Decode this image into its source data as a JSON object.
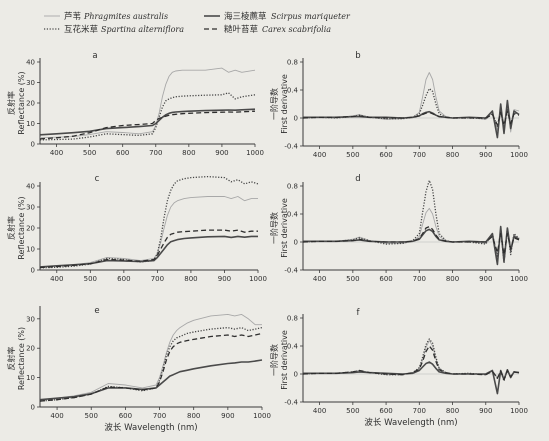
{
  "colors": {
    "background": "#ecebe6",
    "axis": "#3a3a3a",
    "text": "#2f2f2f"
  },
  "legend": {
    "items": [
      {
        "cn": "芦苇",
        "latin": "Phragmites australis",
        "style": "light-solid"
      },
      {
        "cn": "互花米草",
        "latin": "Spartina alterniflora",
        "style": "dotted"
      },
      {
        "cn": "海三棱藨草",
        "latin": "Scirpus mariqueter",
        "style": "thick-solid"
      },
      {
        "cn": "糙叶苔草",
        "latin": "Carex scabrifolia",
        "style": "dashed"
      }
    ]
  },
  "series_styles": {
    "light-solid": {
      "color": "#a8a8a8",
      "width": 0.9,
      "dash": ""
    },
    "dotted": {
      "color": "#444444",
      "width": 1.3,
      "dash": "1.2 1.6"
    },
    "thick-solid": {
      "color": "#4a4a4a",
      "width": 1.6,
      "dash": ""
    },
    "dashed": {
      "color": "#2e2e2e",
      "width": 1.3,
      "dash": "5 3"
    }
  },
  "chart_data": [
    {
      "panel": "a",
      "type": "line",
      "ylabel_cn": "反射率",
      "ylabel_en": "Reflectance (%)",
      "xlabel": "",
      "xlim": [
        350,
        1000
      ],
      "ylim": [
        0,
        40
      ],
      "xticks": [
        400,
        500,
        600,
        700,
        800,
        900,
        1000
      ],
      "yticks": [
        0,
        10,
        20,
        30,
        40
      ],
      "x": [
        350,
        400,
        450,
        500,
        550,
        600,
        650,
        690,
        700,
        710,
        720,
        730,
        740,
        750,
        760,
        780,
        800,
        850,
        900,
        920,
        940,
        960,
        1000
      ],
      "series": [
        {
          "style": "light-solid",
          "values": [
            3,
            3.3,
            3.6,
            4.6,
            6,
            5.6,
            5,
            6,
            9,
            15,
            23,
            29,
            33,
            35,
            35.6,
            36,
            36,
            36,
            37,
            35,
            36,
            35,
            36
          ]
        },
        {
          "style": "dotted",
          "values": [
            2,
            2.2,
            2.4,
            3.4,
            5,
            4.6,
            4.2,
            5,
            8,
            13,
            18,
            21,
            22,
            22.6,
            23,
            23.3,
            23.5,
            23.8,
            24,
            25,
            22,
            23,
            24
          ]
        },
        {
          "style": "thick-solid",
          "values": [
            4.5,
            5,
            5.5,
            6.2,
            7.5,
            8,
            8.5,
            9,
            10,
            11.5,
            13,
            14.2,
            15,
            15.4,
            15.6,
            15.8,
            16,
            16.3,
            16.5,
            16.6,
            16.5,
            16.7,
            17
          ]
        },
        {
          "style": "dashed",
          "values": [
            2.5,
            3,
            3.8,
            5.5,
            8,
            9,
            9.5,
            10,
            11.5,
            12.5,
            13,
            13.5,
            14,
            14.3,
            14.5,
            14.8,
            15,
            15.3,
            15.5,
            15.6,
            15.5,
            15.7,
            16
          ]
        }
      ]
    },
    {
      "panel": "b",
      "type": "line",
      "ylabel_cn": "一阶导数",
      "ylabel_en": "First derivative",
      "xlabel": "",
      "xlim": [
        350,
        1000
      ],
      "ylim": [
        -0.4,
        0.8
      ],
      "xticks": [
        400,
        500,
        600,
        700,
        800,
        900,
        1000
      ],
      "yticks": [
        -0.4,
        0.0,
        0.4,
        0.8
      ],
      "x": [
        350,
        400,
        450,
        500,
        520,
        550,
        600,
        650,
        680,
        700,
        710,
        720,
        730,
        740,
        750,
        760,
        780,
        800,
        850,
        900,
        920,
        935,
        945,
        955,
        965,
        975,
        985,
        1000
      ],
      "series": [
        {
          "style": "light-solid",
          "values": [
            0,
            0.01,
            0,
            0.03,
            0.05,
            0.01,
            -0.02,
            -0.01,
            0.01,
            0.08,
            0.3,
            0.55,
            0.65,
            0.55,
            0.3,
            0.1,
            0.02,
            0,
            0.01,
            -0.02,
            0.08,
            -0.18,
            0.15,
            -0.22,
            0.2,
            -0.2,
            0.12,
            0.1
          ]
        },
        {
          "style": "dotted",
          "values": [
            0,
            0.01,
            0,
            0.02,
            0.04,
            0.01,
            -0.01,
            -0.01,
            0.01,
            0.06,
            0.18,
            0.32,
            0.42,
            0.38,
            0.2,
            0.06,
            0.01,
            0,
            0,
            -0.01,
            0.06,
            -0.12,
            0.1,
            -0.15,
            0.12,
            -0.12,
            0.08,
            0.05
          ]
        },
        {
          "style": "thick-solid",
          "values": [
            0.01,
            0.01,
            0.01,
            0.02,
            0.02,
            0.01,
            0.01,
            0,
            0.01,
            0.03,
            0.06,
            0.08,
            0.09,
            0.07,
            0.04,
            0.02,
            0.01,
            0,
            0.01,
            0,
            0.1,
            -0.28,
            0.2,
            -0.22,
            0.25,
            -0.15,
            0.1,
            0.05
          ]
        },
        {
          "style": "dashed",
          "values": [
            0,
            0.01,
            0.01,
            0.02,
            0.03,
            0.01,
            0,
            0,
            0.01,
            0.03,
            0.05,
            0.07,
            0.08,
            0.06,
            0.04,
            0.02,
            0.01,
            0,
            0,
            0,
            0.05,
            -0.1,
            0.08,
            -0.1,
            0.1,
            -0.08,
            0.06,
            0.04
          ]
        }
      ]
    },
    {
      "panel": "c",
      "type": "line",
      "ylabel_cn": "反射率",
      "ylabel_en": "Reflectance (%)",
      "xlabel": "",
      "xlim": [
        350,
        1000
      ],
      "ylim": [
        0,
        40
      ],
      "xticks": [
        400,
        500,
        600,
        700,
        800,
        900,
        1000
      ],
      "yticks": [
        0,
        10,
        20,
        30,
        40
      ],
      "x": [
        350,
        400,
        450,
        500,
        550,
        600,
        650,
        690,
        700,
        710,
        720,
        730,
        740,
        750,
        760,
        780,
        800,
        850,
        900,
        920,
        940,
        960,
        980,
        1000
      ],
      "series": [
        {
          "style": "light-solid",
          "values": [
            1.5,
            2,
            2.5,
            3.5,
            6,
            5.5,
            4.5,
            5.5,
            8,
            13,
            20,
            26,
            30,
            32,
            33,
            34,
            34.5,
            35,
            35,
            34,
            35,
            33,
            34,
            34
          ]
        },
        {
          "style": "dotted",
          "values": [
            1,
            1.3,
            1.8,
            2.8,
            5.5,
            5,
            3.8,
            4.5,
            8,
            15,
            25,
            33,
            38,
            41,
            42.5,
            43.5,
            44,
            44.5,
            44,
            42,
            43,
            41,
            42,
            41
          ]
        },
        {
          "style": "thick-solid",
          "values": [
            1.5,
            2,
            2.5,
            3,
            4.5,
            4.3,
            4,
            4.5,
            6,
            8,
            10,
            12,
            13.5,
            14,
            14.5,
            15,
            15.3,
            15.8,
            16,
            15.5,
            16,
            15.6,
            16,
            16
          ]
        },
        {
          "style": "dashed",
          "values": [
            1.2,
            1.6,
            2.2,
            3,
            5,
            4.7,
            4.2,
            5,
            7,
            10,
            13,
            15.5,
            17,
            17.5,
            18,
            18.3,
            18.5,
            19,
            19,
            18.5,
            19,
            18,
            18.5,
            18.5
          ]
        }
      ]
    },
    {
      "panel": "d",
      "type": "line",
      "ylabel_cn": "一阶导数",
      "ylabel_en": "First derivative",
      "xlabel": "",
      "xlim": [
        350,
        1000
      ],
      "ylim": [
        -0.4,
        0.8
      ],
      "xticks": [
        400,
        500,
        600,
        700,
        800,
        900,
        1000
      ],
      "yticks": [
        -0.4,
        0.0,
        0.4,
        0.8
      ],
      "x": [
        350,
        400,
        450,
        500,
        520,
        550,
        600,
        650,
        680,
        700,
        710,
        720,
        730,
        740,
        750,
        760,
        780,
        800,
        850,
        900,
        920,
        935,
        945,
        955,
        965,
        975,
        985,
        1000
      ],
      "series": [
        {
          "style": "light-solid",
          "values": [
            0,
            0.01,
            0.01,
            0.04,
            0.07,
            0.02,
            -0.02,
            -0.02,
            0.01,
            0.08,
            0.25,
            0.42,
            0.48,
            0.4,
            0.22,
            0.08,
            0.02,
            0,
            0.01,
            -0.02,
            0.1,
            -0.2,
            0.15,
            -0.25,
            0.18,
            -0.15,
            0.1,
            0.05
          ]
        },
        {
          "style": "dotted",
          "values": [
            0,
            0.01,
            0.01,
            0.03,
            0.06,
            0.02,
            -0.03,
            -0.02,
            0.02,
            0.12,
            0.42,
            0.72,
            0.88,
            0.75,
            0.4,
            0.12,
            0.02,
            0,
            0,
            -0.03,
            0.12,
            -0.22,
            0.18,
            -0.3,
            0.2,
            -0.18,
            0.12,
            0.05
          ]
        },
        {
          "style": "thick-solid",
          "values": [
            0.01,
            0.01,
            0.01,
            0.02,
            0.03,
            0.01,
            0,
            0,
            0.01,
            0.04,
            0.1,
            0.16,
            0.18,
            0.15,
            0.08,
            0.03,
            0.01,
            0,
            0.01,
            0,
            0.12,
            -0.32,
            0.22,
            -0.28,
            0.2,
            -0.12,
            0.08,
            0.04
          ]
        },
        {
          "style": "dashed",
          "values": [
            0,
            0.01,
            0.01,
            0.02,
            0.04,
            0.01,
            0,
            0,
            0.01,
            0.05,
            0.12,
            0.2,
            0.22,
            0.18,
            0.1,
            0.04,
            0.01,
            0,
            0,
            0,
            0.08,
            -0.15,
            0.12,
            -0.18,
            0.12,
            -0.1,
            0.06,
            0.03
          ]
        }
      ]
    },
    {
      "panel": "e",
      "type": "line",
      "ylabel_cn": "反射率",
      "ylabel_en": "Reflectance (%)",
      "xlabel": "波长 Wavelength (nm)",
      "xlim": [
        350,
        1000
      ],
      "ylim": [
        0,
        33
      ],
      "xticks": [
        400,
        500,
        600,
        700,
        800,
        900,
        1000
      ],
      "yticks": [
        0,
        10,
        20,
        30
      ],
      "x": [
        350,
        400,
        450,
        500,
        550,
        600,
        650,
        690,
        700,
        710,
        720,
        730,
        740,
        750,
        760,
        780,
        800,
        850,
        900,
        920,
        940,
        960,
        980,
        1000
      ],
      "series": [
        {
          "style": "light-solid",
          "values": [
            2.5,
            3,
            3.8,
            5,
            8,
            7.5,
            6.5,
            7.5,
            10,
            14,
            18.5,
            22,
            24.5,
            26,
            27,
            28.5,
            29.5,
            31,
            31.5,
            31,
            31.5,
            30,
            28,
            28
          ]
        },
        {
          "style": "dotted",
          "values": [
            2,
            2.5,
            3.2,
            4.4,
            7,
            6.5,
            5.5,
            6.5,
            9,
            13,
            17.5,
            20.5,
            22.5,
            23.5,
            24,
            25,
            25.5,
            26.5,
            27,
            26.5,
            27,
            26,
            26.5,
            27
          ]
        },
        {
          "style": "thick-solid",
          "values": [
            2.5,
            3,
            3.5,
            4.5,
            6.5,
            6.5,
            6,
            6.5,
            7.5,
            8.5,
            9.5,
            10.5,
            11,
            11.5,
            12,
            12.5,
            13,
            14,
            14.8,
            15,
            15.3,
            15.3,
            15.6,
            16
          ]
        },
        {
          "style": "dashed",
          "values": [
            2,
            2.5,
            3.2,
            4.4,
            6.8,
            6.5,
            5.8,
            6.5,
            8.5,
            12,
            16,
            19,
            20.5,
            21.5,
            22,
            22.6,
            23,
            24,
            24.5,
            24,
            24.5,
            24,
            24.5,
            25
          ]
        }
      ]
    },
    {
      "panel": "f",
      "type": "line",
      "ylabel_cn": "一阶导数",
      "ylabel_en": "First derivative",
      "xlabel": "波长 Wavelength (nm)",
      "xlim": [
        350,
        1000
      ],
      "ylim": [
        -0.4,
        0.8
      ],
      "xticks": [
        400,
        500,
        600,
        700,
        800,
        900,
        1000
      ],
      "yticks": [
        -0.4,
        0.0,
        0.4,
        0.8
      ],
      "x": [
        350,
        400,
        450,
        500,
        520,
        550,
        600,
        650,
        680,
        700,
        710,
        720,
        730,
        740,
        750,
        760,
        780,
        800,
        850,
        900,
        920,
        935,
        945,
        955,
        965,
        975,
        985,
        1000
      ],
      "series": [
        {
          "style": "light-solid",
          "values": [
            0,
            0.01,
            0.01,
            0.03,
            0.05,
            0.02,
            -0.01,
            -0.01,
            0.02,
            0.08,
            0.2,
            0.38,
            0.48,
            0.4,
            0.22,
            0.08,
            0.02,
            0,
            0.01,
            -0.01,
            0.04,
            -0.05,
            0.03,
            -0.08,
            0.05,
            -0.04,
            0.03,
            0.02
          ]
        },
        {
          "style": "dotted",
          "values": [
            0,
            0.01,
            0.01,
            0.03,
            0.05,
            0.02,
            -0.01,
            -0.01,
            0.02,
            0.09,
            0.24,
            0.42,
            0.5,
            0.44,
            0.24,
            0.08,
            0.02,
            0,
            0.01,
            -0.01,
            0.04,
            -0.06,
            0.04,
            -0.1,
            0.06,
            -0.05,
            0.03,
            0.02
          ]
        },
        {
          "style": "thick-solid",
          "values": [
            0.01,
            0.01,
            0.01,
            0.02,
            0.03,
            0.02,
            0.01,
            0,
            0.01,
            0.05,
            0.1,
            0.15,
            0.17,
            0.14,
            0.08,
            0.03,
            0.01,
            0,
            0,
            0,
            0.05,
            -0.28,
            0.05,
            -0.08,
            0.06,
            -0.05,
            0.03,
            0.02
          ]
        },
        {
          "style": "dashed",
          "values": [
            0,
            0.01,
            0.01,
            0.03,
            0.05,
            0.02,
            0,
            -0.01,
            0.02,
            0.07,
            0.18,
            0.32,
            0.4,
            0.34,
            0.18,
            0.06,
            0.02,
            0,
            0,
            -0.01,
            0.04,
            -0.06,
            0.04,
            -0.08,
            0.05,
            -0.04,
            0.03,
            0.02
          ]
        }
      ]
    }
  ]
}
